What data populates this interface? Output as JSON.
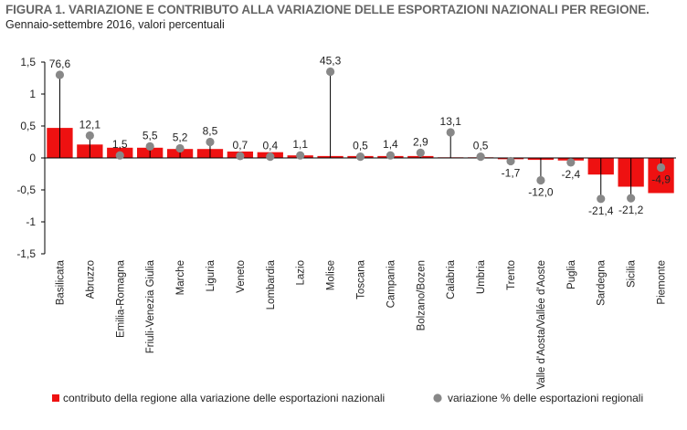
{
  "title": "FIGURA 1. VARIAZIONE E CONTRIBUTO ALLA VARIAZIONE DELLE ESPORTAZIONI NAZIONALI PER REGIONE.",
  "subtitle": "Gennaio-settembre 2016, valori percentuali",
  "colors": {
    "bar": "#ee1111",
    "marker": "#888888",
    "axis": "#000000",
    "title": "#666666"
  },
  "chart_data": {
    "type": "bar",
    "title": "FIGURA 1. VARIAZIONE E CONTRIBUTO ALLA VARIAZIONE DELLE ESPORTAZIONI NAZIONALI PER REGIONE.",
    "subtitle": "Gennaio-settembre 2016, valori percentuali",
    "categories": [
      "Basilicata",
      "Abruzzo",
      "Emilia-Romagna",
      "Friuli-Venezia Giulia",
      "Marche",
      "Liguria",
      "Veneto",
      "Lombardia",
      "Lazio",
      "Molise",
      "Toscana",
      "Campania",
      "Bolzano/Bozen",
      "Calabria",
      "Umbria",
      "Trento",
      "Valle d'Aosta/Vallée d'Aoste",
      "Puglia",
      "Sardegna",
      "Sicilia",
      "Piemonte"
    ],
    "ylim": [
      -1.5,
      1.5
    ],
    "yticks": [
      "1,5",
      "1",
      "0,5",
      "0",
      "-0,5",
      "-1",
      "-1,5"
    ],
    "ytick_values": [
      1.5,
      1,
      0.5,
      0,
      -0.5,
      -1,
      -1.5
    ],
    "grid": false,
    "legend_position": "bottom",
    "series": [
      {
        "name": "contributo della regione alla variazione delle esportazioni nazionali",
        "kind": "bar",
        "values": [
          0.47,
          0.21,
          0.16,
          0.16,
          0.14,
          0.14,
          0.1,
          0.09,
          0.04,
          0.03,
          0.03,
          0.03,
          0.03,
          0.01,
          0.01,
          -0.02,
          -0.03,
          -0.04,
          -0.26,
          -0.45,
          -0.55
        ]
      },
      {
        "name": "variazione % delle esportazioni regionali",
        "kind": "marker",
        "labels": [
          "76,6",
          "12,1",
          "1,5",
          "5,5",
          "5,2",
          "8,5",
          "0,7",
          "0,4",
          "1,1",
          "45,3",
          "0,5",
          "1,4",
          "2,9",
          "13,1",
          "0,5",
          "-1,7",
          "-12,0",
          "-2,4",
          "-21,4",
          "-21,2",
          "-4,9"
        ],
        "marker_y": [
          1.3,
          0.35,
          0.04,
          0.18,
          0.15,
          0.25,
          0.03,
          0.02,
          0.04,
          1.35,
          0.02,
          0.04,
          0.08,
          0.4,
          0.02,
          -0.05,
          -0.35,
          -0.07,
          -0.64,
          -0.63,
          -0.15
        ]
      }
    ]
  }
}
